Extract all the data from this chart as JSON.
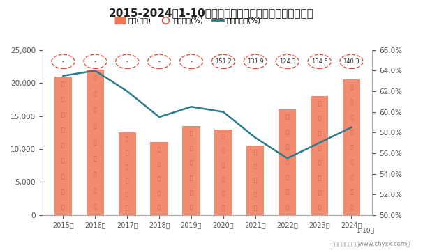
{
  "title": "2015-2024年1-10月石油和天然气开采业企业负债统计图",
  "years": [
    "2015年",
    "2016年",
    "2017年",
    "2018年",
    "2019年",
    "2020年",
    "2021年",
    "2022年",
    "2023年",
    "2024年"
  ],
  "liabilities": [
    21000,
    22000,
    12500,
    11000,
    13500,
    13000,
    10500,
    16000,
    18000,
    20500
  ],
  "equity_ratio": [
    "-",
    "-",
    "-",
    "-",
    "-",
    "151.2",
    "131.9",
    "124.3",
    "134.5",
    "140.3"
  ],
  "asset_liability_rate": [
    63.5,
    64.0,
    62.0,
    59.5,
    60.5,
    60.0,
    57.5,
    55.5,
    57.0,
    58.5
  ],
  "ylim_left": [
    0,
    25000
  ],
  "ylim_right": [
    50.0,
    66.0
  ],
  "yticks_left": [
    0,
    5000,
    10000,
    15000,
    20000,
    25000
  ],
  "yticks_right": [
    50.0,
    52.0,
    54.0,
    56.0,
    58.0,
    60.0,
    62.0,
    64.0,
    66.0
  ],
  "bar_color": "#F07858",
  "line_color": "#2A7B8C",
  "circle_edge_color": "#E05040",
  "bg_color": "#FFFFFF",
  "legend_items": [
    "负债(亿元)",
    "产权比率(%)",
    "资产负债率(%)"
  ],
  "footnote": "制图：智研咋询（www.chyxx.com）",
  "subtitle_note": "1-10月",
  "debt_char": "债"
}
